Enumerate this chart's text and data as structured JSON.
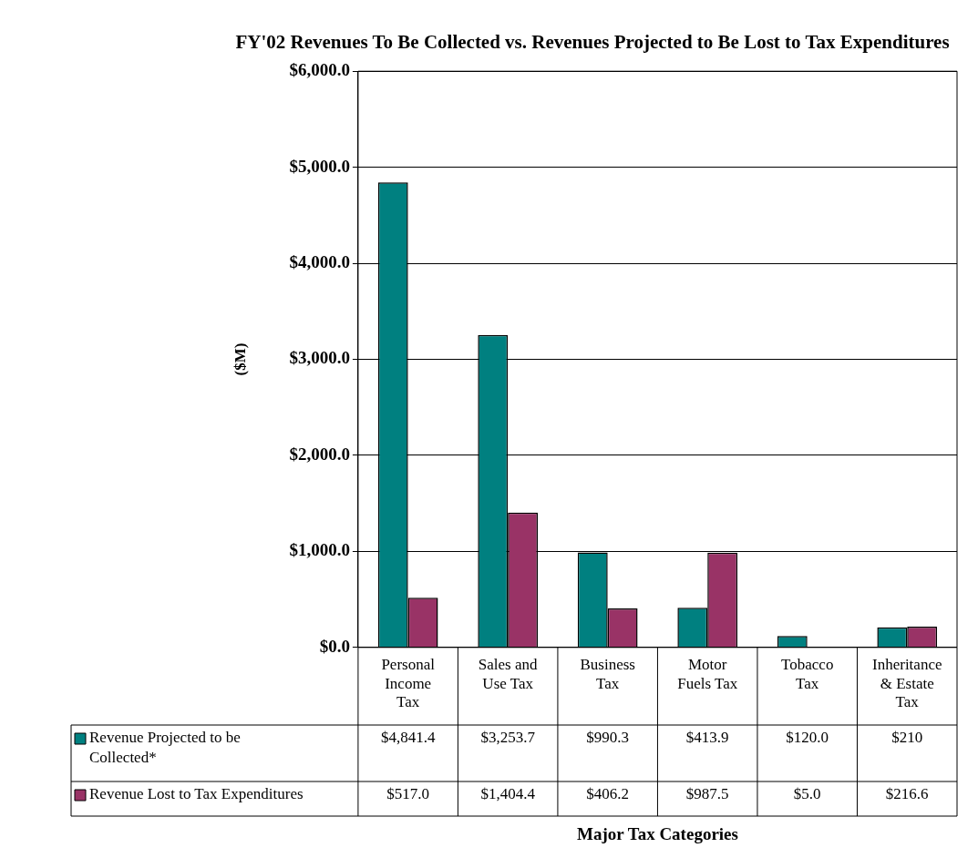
{
  "chart_data": {
    "type": "bar",
    "title": "FY'02 Revenues To Be Collected vs. Revenues Projected to Be Lost to Tax Expenditures",
    "ylabel": "($M)",
    "annotations": [
      "Major Tax Categories"
    ],
    "legend": "bottom left",
    "categories": [
      "Personal Income Tax",
      "Sales and Use Tax",
      "Business Tax",
      "Motor Fuels Tax",
      "Tobacco Tax",
      "Inheritance & Estate Tax"
    ],
    "series": [
      {
        "name": "Revenue Projected to be Collected*",
        "color": "#008080",
        "values": [
          4841.4,
          3253.7,
          990.3,
          413.9,
          120.0,
          210
        ],
        "value_labels": [
          "$4,841.4",
          "$3,253.7",
          "$990.3",
          "$413.9",
          "$120.0",
          "$210"
        ]
      },
      {
        "name": "Revenue Lost to Tax Expenditures",
        "color": "#993366",
        "values": [
          517.0,
          1404.4,
          406.2,
          987.5,
          5.0,
          216.6
        ],
        "value_labels": [
          "$517.0",
          "$1,404.4",
          "$406.2",
          "$987.5",
          "$5.0",
          "$216.6"
        ]
      }
    ],
    "ylim": [
      0,
      6000
    ],
    "yticks": [
      {
        "value": 0,
        "label": "$0.0"
      },
      {
        "value": 1000,
        "label": "$1,000.0"
      },
      {
        "value": 2000,
        "label": "$2,000.0"
      },
      {
        "value": 3000,
        "label": "$3,000.0"
      },
      {
        "value": 4000,
        "label": "$4,000.0"
      },
      {
        "value": 5000,
        "label": "$5,000.0"
      },
      {
        "value": 6000,
        "label": "$6,000.0"
      }
    ],
    "grid": "y"
  }
}
